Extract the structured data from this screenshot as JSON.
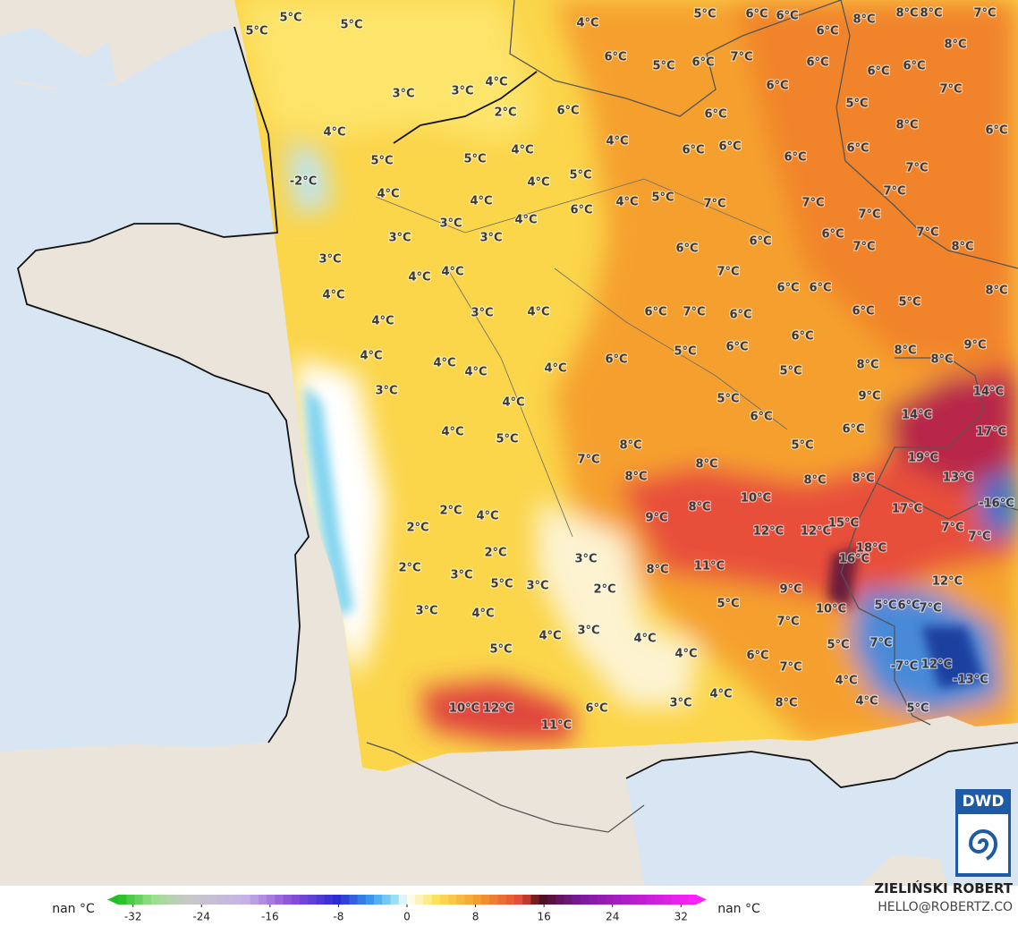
{
  "map": {
    "labels": [
      "5°C",
      "5°C",
      "5°C",
      "4°C",
      "5°C",
      "6°C",
      "6°C",
      "8°C",
      "8°C",
      "8°C",
      "7°C",
      "6°C",
      "6°C",
      "5°C",
      "6°C",
      "7°C",
      "6°C",
      "6°C",
      "6°C",
      "8°C",
      "4°C",
      "3°C",
      "3°C",
      "6°C",
      "7°C",
      "2°C",
      "6°C",
      "6°C",
      "5°C",
      "4°C",
      "4°C",
      "8°C",
      "6°C",
      "4°C",
      "5°C",
      "5°C",
      "6°C",
      "6°C",
      "6°C",
      "6°C",
      "7°C",
      "-2°C",
      "4°C",
      "5°C",
      "4°C",
      "4°C",
      "5°C",
      "4°C",
      "7°C",
      "7°C",
      "7°C",
      "6°C",
      "3°C",
      "4°C",
      "7°C",
      "7°C",
      "3°C",
      "3°C",
      "6°C",
      "6°C",
      "6°C",
      "7°C",
      "8°C",
      "3°C",
      "4°C",
      "4°C",
      "7°C",
      "4°C",
      "6°C",
      "6°C",
      "8°C",
      "3°C",
      "4°C",
      "6°C",
      "7°C",
      "6°C",
      "6°C",
      "5°C",
      "4°C",
      "6°C",
      "6°C",
      "4°C",
      "5°C",
      "8°C",
      "9°C",
      "4°C",
      "4°C",
      "4°C",
      "6°C",
      "5°C",
      "8°C",
      "8°C",
      "3°C",
      "4°C",
      "5°C",
      "9°C",
      "14°C",
      "6°C",
      "14°C",
      "4°C",
      "5°C",
      "6°C",
      "17°C",
      "8°C",
      "5°C",
      "7°C",
      "8°C",
      "19°C",
      "8°C",
      "8°C",
      "13°C",
      "10°C",
      "8°C",
      "2°C",
      "4°C",
      "8°C",
      "17°C",
      "-16°C",
      "9°C",
      "2°C",
      "12°C",
      "12°C",
      "15°C",
      "7°C",
      "7°C",
      "2°C",
      "18°C",
      "3°C",
      "2°C",
      "8°C",
      "11°C",
      "16°C",
      "3°C",
      "5°C",
      "3°C",
      "2°C",
      "12°C",
      "9°C",
      "5°C",
      "5°C",
      "6°C",
      "3°C",
      "4°C",
      "10°C",
      "7°C",
      "7°C",
      "4°C",
      "3°C",
      "4°C",
      "5°C",
      "7°C",
      "5°C",
      "4°C",
      "6°C",
      "7°C",
      "-7°C",
      "12°C",
      "4°C",
      "-13°C",
      "4°C",
      "3°C",
      "4°C",
      "8°C",
      "5°C",
      "10°C",
      "12°C",
      "6°C",
      "11°C"
    ]
  },
  "colorbar": {
    "lim": [
      -35,
      35
    ],
    "ticks": [
      -32,
      -24,
      -16,
      -8,
      0,
      8,
      16,
      24,
      32
    ],
    "left_label": "nan °C",
    "right_label": "nan °C"
  },
  "credit": {
    "author": "ZIELIŃSKI ROBERT",
    "email": "HELLO@ROBERTZ.CO",
    "logo": "DWD"
  }
}
